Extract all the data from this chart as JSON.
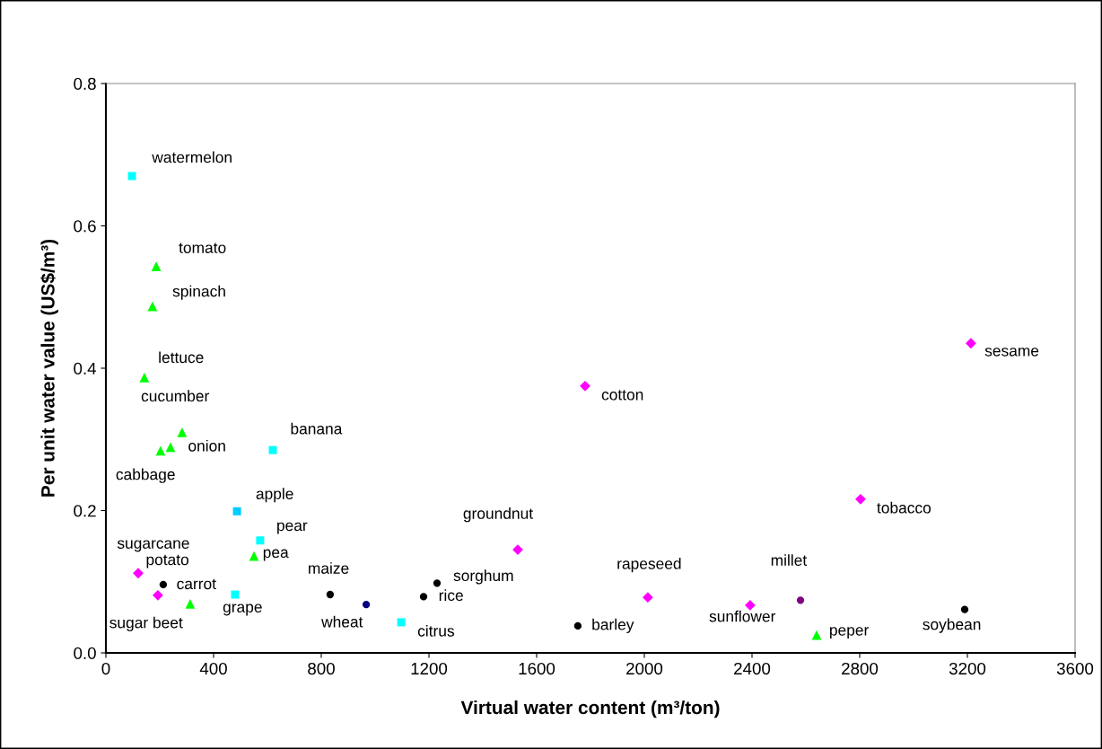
{
  "chart_data": {
    "type": "scatter",
    "xlabel": "Virtual water content (m³/ton)",
    "ylabel": "Per unit water value (US$/m³)",
    "xlim": [
      0,
      3600
    ],
    "xticks": [
      0,
      400,
      800,
      1200,
      1600,
      2000,
      2400,
      2800,
      3200,
      3600
    ],
    "ylim": [
      0,
      0.8
    ],
    "yticks": [
      {
        "value": 0,
        "label": "0.0"
      },
      {
        "value": 0.2,
        "label": "0.2"
      },
      {
        "value": 0.4,
        "label": "0.4"
      },
      {
        "value": 0.6,
        "label": "0.6"
      },
      {
        "value": 0.8,
        "label": "0.8"
      }
    ],
    "grid": false,
    "legend": false,
    "series": [
      {
        "marker": "square",
        "color": "#00ffff",
        "colors": [
          "#00ffff",
          "#00ffff",
          "#00ccff",
          "#00ffff",
          "#00ffff",
          "#00ffff"
        ],
        "x": [
          97,
          620,
          487,
          573,
          480,
          1097
        ],
        "values": [
          0.67,
          0.285,
          0.199,
          0.158,
          0.082,
          0.043
        ]
      },
      {
        "marker": "triangle",
        "color": "#00ff00",
        "x": [
          187,
          173,
          143,
          283,
          240,
          203,
          550,
          313,
          2640
        ],
        "values": [
          0.543,
          0.487,
          0.387,
          0.31,
          0.289,
          0.284,
          0.136,
          0.069,
          0.025
        ]
      },
      {
        "marker": "diamond",
        "color": "#ff00ff",
        "x": [
          120,
          193,
          1530,
          1780,
          2013,
          2393,
          2803,
          3213
        ],
        "values": [
          0.112,
          0.081,
          0.145,
          0.375,
          0.078,
          0.067,
          0.216,
          0.435
        ]
      },
      {
        "marker": "circle",
        "color": "#000000",
        "colors": [
          "#000000",
          "#000000",
          "#000080",
          "#000000",
          "#000000",
          "#000000",
          "#800080",
          "#000000"
        ],
        "x": [
          213,
          833,
          967,
          1180,
          1230,
          1753,
          2580,
          3190
        ],
        "values": [
          0.096,
          0.082,
          0.068,
          0.079,
          0.098,
          0.038,
          0.074,
          0.061
        ]
      }
    ],
    "annotations": [
      {
        "text": "watermelon",
        "x": 97,
        "y": 0.67
      },
      {
        "text": "tomato",
        "x": 187,
        "y": 0.543
      },
      {
        "text": "spinach",
        "x": 173,
        "y": 0.487
      },
      {
        "text": "lettuce",
        "x": 143,
        "y": 0.387
      },
      {
        "text": "cucumber",
        "x": 283,
        "y": 0.31
      },
      {
        "text": "onion",
        "x": 240,
        "y": 0.289
      },
      {
        "text": "cabbage",
        "x": 203,
        "y": 0.284
      },
      {
        "text": "banana",
        "x": 620,
        "y": 0.285
      },
      {
        "text": "apple",
        "x": 487,
        "y": 0.199
      },
      {
        "text": "pear",
        "x": 573,
        "y": 0.158
      },
      {
        "text": "pea",
        "x": 550,
        "y": 0.136
      },
      {
        "text": "sugarcane",
        "x": 120,
        "y": 0.112
      },
      {
        "text": "potato",
        "x": 213,
        "y": 0.096
      },
      {
        "text": "sugar beet",
        "x": 193,
        "y": 0.081
      },
      {
        "text": "carrot",
        "x": 313,
        "y": 0.069
      },
      {
        "text": "grape",
        "x": 480,
        "y": 0.082
      },
      {
        "text": "maize",
        "x": 833,
        "y": 0.082
      },
      {
        "text": "wheat",
        "x": 967,
        "y": 0.068
      },
      {
        "text": "rice",
        "x": 1180,
        "y": 0.079
      },
      {
        "text": "sorghum",
        "x": 1230,
        "y": 0.098
      },
      {
        "text": "citrus",
        "x": 1097,
        "y": 0.043
      },
      {
        "text": "groundnut",
        "x": 1530,
        "y": 0.145
      },
      {
        "text": "barley",
        "x": 1753,
        "y": 0.038
      },
      {
        "text": "cotton",
        "x": 1780,
        "y": 0.375
      },
      {
        "text": "rapeseed",
        "x": 2013,
        "y": 0.078
      },
      {
        "text": "sunflower",
        "x": 2393,
        "y": 0.067
      },
      {
        "text": "millet",
        "x": 2580,
        "y": 0.074
      },
      {
        "text": "peper",
        "x": 2640,
        "y": 0.025
      },
      {
        "text": "soybean",
        "x": 3190,
        "y": 0.061
      },
      {
        "text": "tobacco",
        "x": 2803,
        "y": 0.216
      },
      {
        "text": "sesame",
        "x": 3213,
        "y": 0.435
      }
    ]
  }
}
